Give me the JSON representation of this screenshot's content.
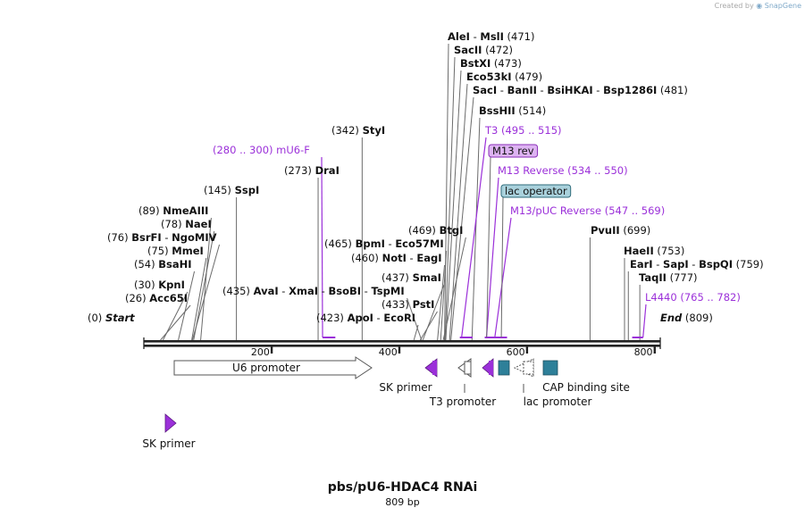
{
  "header": {
    "credit_prefix": "Created by",
    "credit_brand": "SnapGene"
  },
  "map": {
    "name": "pbs/pU6-HDAC4 RNAi",
    "length_label": "809 bp",
    "total_bp": 809,
    "ruler": [
      {
        "bp": 200,
        "label": "200"
      },
      {
        "bp": 400,
        "label": "400"
      },
      {
        "bp": 600,
        "label": "600"
      },
      {
        "bp": 800,
        "label": "800"
      }
    ],
    "ends": [
      {
        "kind": "start",
        "label": "Start",
        "pos": "(0)",
        "bp": 0
      },
      {
        "kind": "end",
        "label": "End",
        "pos": "(809)",
        "bp": 809
      }
    ],
    "sites": [
      {
        "id": "ecori",
        "names": [
          "ApoI",
          "EcoRI"
        ],
        "pos": "(423)",
        "bp": 423,
        "side": "left"
      },
      {
        "id": "psti",
        "names": [
          "PstI"
        ],
        "pos": "(433)",
        "bp": 433,
        "side": "left"
      },
      {
        "id": "smai",
        "names": [
          "SmaI"
        ],
        "pos": "(437)",
        "bp": 437,
        "side": "left"
      },
      {
        "id": "aval",
        "names": [
          "AvaI",
          "XmaI",
          "BsoBI",
          "TspMI"
        ],
        "pos": "(435)",
        "bp": 435,
        "side": "left"
      },
      {
        "id": "noti",
        "names": [
          "NotI",
          "EagI"
        ],
        "pos": "(460)",
        "bp": 460,
        "side": "left"
      },
      {
        "id": "bpmi",
        "names": [
          "BpmI",
          "Eco57MI"
        ],
        "pos": "(465)",
        "bp": 465,
        "side": "left"
      },
      {
        "id": "btgi",
        "names": [
          "BtgI"
        ],
        "pos": "(469)",
        "bp": 469,
        "side": "left"
      },
      {
        "id": "dral",
        "names": [
          "DraI"
        ],
        "pos": "(273)",
        "bp": 273,
        "side": "left"
      },
      {
        "id": "styi",
        "names": [
          "StyI"
        ],
        "pos": "(342)",
        "bp": 342,
        "side": "left"
      },
      {
        "id": "sspi",
        "names": [
          "SspI"
        ],
        "pos": "(145)",
        "bp": 145,
        "side": "left"
      },
      {
        "id": "nmeaiii",
        "names": [
          "NmeAIII"
        ],
        "pos": "(89)",
        "bp": 89,
        "side": "left"
      },
      {
        "id": "naei",
        "names": [
          "NaeI"
        ],
        "pos": "(78)",
        "bp": 78,
        "side": "left"
      },
      {
        "id": "bsrfi",
        "names": [
          "BsrFI",
          "NgoMIV"
        ],
        "pos": "(76)",
        "bp": 76,
        "side": "left"
      },
      {
        "id": "mmei",
        "names": [
          "MmeI"
        ],
        "pos": "(75)",
        "bp": 75,
        "side": "left"
      },
      {
        "id": "bsahi",
        "names": [
          "BsaHI"
        ],
        "pos": "(54)",
        "bp": 54,
        "side": "left"
      },
      {
        "id": "kpni",
        "names": [
          "KpnI"
        ],
        "pos": "(30)",
        "bp": 30,
        "side": "left"
      },
      {
        "id": "acc65i",
        "names": [
          "Acc65I"
        ],
        "pos": "(26)",
        "bp": 26,
        "side": "left"
      },
      {
        "id": "alei",
        "names": [
          "AleI",
          "MslI"
        ],
        "pos": "(471)",
        "bp": 471,
        "side": "right"
      },
      {
        "id": "sacii",
        "names": [
          "SacII"
        ],
        "pos": "(472)",
        "bp": 472,
        "side": "right"
      },
      {
        "id": "bstxi",
        "names": [
          "BstXI"
        ],
        "pos": "(473)",
        "bp": 473,
        "side": "right"
      },
      {
        "id": "eco53ki",
        "names": [
          "Eco53kI"
        ],
        "pos": "(479)",
        "bp": 479,
        "side": "right"
      },
      {
        "id": "saci",
        "names": [
          "SacI",
          "BanII",
          "BsiHKAI",
          "Bsp1286I"
        ],
        "pos": "(481)",
        "bp": 481,
        "side": "right"
      },
      {
        "id": "bsshii",
        "names": [
          "BssHII"
        ],
        "pos": "(514)",
        "bp": 514,
        "side": "right"
      },
      {
        "id": "pvuii",
        "names": [
          "PvuII"
        ],
        "pos": "(699)",
        "bp": 699,
        "side": "right"
      },
      {
        "id": "haeii",
        "names": [
          "HaeII"
        ],
        "pos": "(753)",
        "bp": 753,
        "side": "right"
      },
      {
        "id": "eari",
        "names": [
          "EarI",
          "SapI",
          "BspQI"
        ],
        "pos": "(759)",
        "bp": 759,
        "side": "right"
      },
      {
        "id": "taqii",
        "names": [
          "TaqII"
        ],
        "pos": "(777)",
        "bp": 777,
        "side": "right"
      }
    ],
    "primers": [
      {
        "id": "mu6f",
        "name": "mU6-F",
        "range": "(280 .. 300)",
        "start": 280,
        "end": 300,
        "side": "left"
      },
      {
        "id": "t3",
        "name": "T3",
        "range": "(495 .. 515)",
        "start": 495,
        "end": 515,
        "side": "right"
      },
      {
        "id": "m13rev",
        "name": "M13 rev",
        "range": "",
        "start": 537,
        "end": 553,
        "side": "right",
        "boxed": true
      },
      {
        "id": "m13reverse",
        "name": "M13 Reverse",
        "range": "(534 .. 550)",
        "start": 534,
        "end": 550,
        "side": "right"
      },
      {
        "id": "m13puc",
        "name": "M13/pUC Reverse",
        "range": "(547 .. 569)",
        "start": 547,
        "end": 569,
        "side": "right"
      },
      {
        "id": "l4440",
        "name": "L4440",
        "range": "(765 .. 782)",
        "start": 765,
        "end": 782,
        "side": "right"
      }
    ],
    "boxed_features": [
      {
        "id": "lacop",
        "name": "lac operator",
        "bp": 560
      }
    ],
    "features": [
      {
        "id": "u6",
        "name": "U6 promoter",
        "kind": "arrow-right",
        "color": "#ffffff"
      },
      {
        "id": "skprimer1",
        "name": "SK primer",
        "kind": "primer-left",
        "color": "#9b30d9"
      },
      {
        "id": "t3promoter",
        "name": "T3 promoter",
        "kind": "promoter-left",
        "color": "#ffffff"
      },
      {
        "id": "m13revfeat",
        "name": "",
        "kind": "primer-left",
        "color": "#9b30d9"
      },
      {
        "id": "lacopbox",
        "name": "",
        "kind": "box",
        "color": "#2e8099"
      },
      {
        "id": "lacpromoter",
        "name": "lac promoter",
        "kind": "promoter-left",
        "color": "#ffffff"
      },
      {
        "id": "cap",
        "name": "CAP binding site",
        "kind": "box",
        "color": "#2e8099"
      },
      {
        "id": "skprimer2",
        "name": "SK primer",
        "kind": "primer-right",
        "color": "#9b30d9"
      }
    ],
    "colors": {
      "primer": "#9b30d9",
      "dna": "#222222",
      "lac_operator_box": "#a9d1dc",
      "m13rev_box": "#ddb3f2"
    }
  }
}
